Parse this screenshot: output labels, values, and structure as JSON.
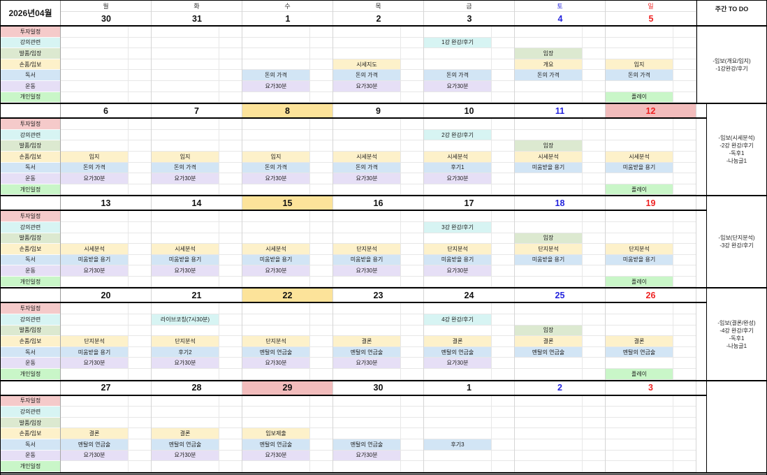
{
  "title": "2026년04월",
  "todo_header": "주간 TO DO",
  "weekdays": [
    {
      "label": "월",
      "color": "#303030"
    },
    {
      "label": "화",
      "color": "#303030"
    },
    {
      "label": "수",
      "color": "#303030"
    },
    {
      "label": "목",
      "color": "#303030"
    },
    {
      "label": "금",
      "color": "#303030"
    },
    {
      "label": "토",
      "color": "#2424dd"
    },
    {
      "label": "일",
      "color": "#ee2222"
    }
  ],
  "categories": [
    {
      "label": "투자일정",
      "color": "#f5caca"
    },
    {
      "label": "강의관련",
      "color": "#d7f4f3"
    },
    {
      "label": "발품/임장",
      "color": "#dce9d0"
    },
    {
      "label": "손품/임보",
      "color": "#fdf1ca"
    },
    {
      "label": "독서",
      "color": "#d2e5f5"
    },
    {
      "label": "운동",
      "color": "#e6dff6"
    },
    {
      "label": "개인일정",
      "color": "#c9f6c8"
    }
  ],
  "date_colors": {
    "default": "#111111",
    "sat": "#2424dd",
    "sun": "#ee2222"
  },
  "date_backgrounds": {
    "yellow": "#fce39a",
    "pink": "#f2bcbc"
  },
  "weeks": [
    {
      "dates": [
        {
          "day": "30",
          "color": "default",
          "bg": null
        },
        {
          "day": "31",
          "color": "default",
          "bg": null
        },
        {
          "day": "1",
          "color": "default",
          "bg": null
        },
        {
          "day": "2",
          "color": "default",
          "bg": null
        },
        {
          "day": "3",
          "color": "default",
          "bg": null
        },
        {
          "day": "4",
          "color": "sat",
          "bg": null
        },
        {
          "day": "5",
          "color": "sun",
          "bg": null
        }
      ],
      "rows": [
        [
          "",
          "",
          "",
          "",
          "",
          "",
          ""
        ],
        [
          "",
          "",
          "",
          "",
          "1강 완강/후기",
          "",
          ""
        ],
        [
          "",
          "",
          "",
          "",
          "",
          "임장",
          ""
        ],
        [
          "",
          "",
          "",
          "시세지도",
          "",
          "개요",
          "입지"
        ],
        [
          "",
          "",
          "돈의 가격",
          "돈의 가격",
          "돈의 가격",
          "돈의 가격",
          "돈의 가격"
        ],
        [
          "",
          "",
          "요가30분",
          "요가30분",
          "요가30분",
          "",
          ""
        ],
        [
          "",
          "",
          "",
          "",
          "",
          "",
          "플레이"
        ]
      ],
      "todo": [
        "-임보(개요/입지)",
        "-1강완강/후기"
      ]
    },
    {
      "dates": [
        {
          "day": "6",
          "color": "default",
          "bg": null
        },
        {
          "day": "7",
          "color": "default",
          "bg": null
        },
        {
          "day": "8",
          "color": "default",
          "bg": "yellow"
        },
        {
          "day": "9",
          "color": "default",
          "bg": null
        },
        {
          "day": "10",
          "color": "default",
          "bg": null
        },
        {
          "day": "11",
          "color": "sat",
          "bg": null
        },
        {
          "day": "12",
          "color": "sun",
          "bg": "pink"
        }
      ],
      "rows": [
        [
          "",
          "",
          "",
          "",
          "",
          "",
          ""
        ],
        [
          "",
          "",
          "",
          "",
          "2강 완강/후기",
          "",
          ""
        ],
        [
          "",
          "",
          "",
          "",
          "",
          "임장",
          ""
        ],
        [
          "입지",
          "입지",
          "입지",
          "시세분석",
          "시세분석",
          "시세분석",
          "시세분석"
        ],
        [
          "돈의 가격",
          "돈의 가격",
          "돈의 가격",
          "돈의 가격",
          "후기1",
          "미움받을 용기",
          "미움받을 용기"
        ],
        [
          "요가30분",
          "요가30분",
          "요가30분",
          "요가30분",
          "요가30분",
          "",
          ""
        ],
        [
          "",
          "",
          "",
          "",
          "",
          "",
          "플레이"
        ]
      ],
      "todo": [
        "-임보(시세분석)",
        "-2강 완강/후기",
        "-독후1",
        "-나눔글1"
      ]
    },
    {
      "dates": [
        {
          "day": "13",
          "color": "default",
          "bg": null
        },
        {
          "day": "14",
          "color": "default",
          "bg": null
        },
        {
          "day": "15",
          "color": "default",
          "bg": "yellow"
        },
        {
          "day": "16",
          "color": "default",
          "bg": null
        },
        {
          "day": "17",
          "color": "default",
          "bg": null
        },
        {
          "day": "18",
          "color": "sat",
          "bg": null
        },
        {
          "day": "19",
          "color": "sun",
          "bg": null
        }
      ],
      "rows": [
        [
          "",
          "",
          "",
          "",
          "",
          "",
          ""
        ],
        [
          "",
          "",
          "",
          "",
          "3강 완강/후기",
          "",
          ""
        ],
        [
          "",
          "",
          "",
          "",
          "",
          "임장",
          ""
        ],
        [
          "시세분석",
          "시세분석",
          "시세분석",
          "단지분석",
          "단지분석",
          "단지분석",
          "단지분석"
        ],
        [
          "미움받을 용기",
          "미움받을 용기",
          "미움받을 용기",
          "미움받을 용기",
          "미움받을 용기",
          "미움받을 용기",
          "미움받을 용기"
        ],
        [
          "요가30분",
          "요가30분",
          "요가30분",
          "요가30분",
          "요가30분",
          "",
          ""
        ],
        [
          "",
          "",
          "",
          "",
          "",
          "",
          "플레이"
        ]
      ],
      "todo": [
        "-임보(단지분석)",
        "-3강 완강/후기"
      ]
    },
    {
      "dates": [
        {
          "day": "20",
          "color": "default",
          "bg": null
        },
        {
          "day": "21",
          "color": "default",
          "bg": null
        },
        {
          "day": "22",
          "color": "default",
          "bg": "yellow"
        },
        {
          "day": "23",
          "color": "default",
          "bg": null
        },
        {
          "day": "24",
          "color": "default",
          "bg": null
        },
        {
          "day": "25",
          "color": "sat",
          "bg": null
        },
        {
          "day": "26",
          "color": "sun",
          "bg": null
        }
      ],
      "rows": [
        [
          "",
          "",
          "",
          "",
          "",
          "",
          ""
        ],
        [
          "",
          "라이브코칭(7시30분)",
          "",
          "",
          "4강 완강/후기",
          "",
          ""
        ],
        [
          "",
          "",
          "",
          "",
          "",
          "임장",
          ""
        ],
        [
          "단지분석",
          "단지분석",
          "단지분석",
          "결론",
          "결론",
          "결론",
          "결론"
        ],
        [
          "미움받을 용기",
          "후기2",
          "멘탈의 연금술",
          "멘탈의 연금술",
          "멘탈의 연금술",
          "멘탈의 연금술",
          "멘탈의 연금술"
        ],
        [
          "요가30분",
          "요가30분",
          "요가30분",
          "요가30분",
          "요가30분",
          "",
          ""
        ],
        [
          "",
          "",
          "",
          "",
          "",
          "",
          "플레이"
        ]
      ],
      "todo": [
        "-임보(결론/완성)",
        "-4강 완강/후기",
        "-독후1",
        "-나눔글1"
      ]
    },
    {
      "dates": [
        {
          "day": "27",
          "color": "default",
          "bg": null
        },
        {
          "day": "28",
          "color": "default",
          "bg": null
        },
        {
          "day": "29",
          "color": "default",
          "bg": "pink"
        },
        {
          "day": "30",
          "color": "default",
          "bg": null
        },
        {
          "day": "1",
          "color": "default",
          "bg": null
        },
        {
          "day": "2",
          "color": "sat",
          "bg": null
        },
        {
          "day": "3",
          "color": "sun",
          "bg": null
        }
      ],
      "rows": [
        [
          "",
          "",
          "",
          "",
          "",
          "",
          ""
        ],
        [
          "",
          "",
          "",
          "",
          "",
          "",
          ""
        ],
        [
          "",
          "",
          "",
          "",
          "",
          "",
          ""
        ],
        [
          "결론",
          "결론",
          "임보제출",
          "",
          "",
          "",
          ""
        ],
        [
          "멘탈의 연금술",
          "멘탈의 연금술",
          "멘탈의 연금술",
          "멘탈의 연금술",
          "후기3",
          "",
          ""
        ],
        [
          "요가30분",
          "요가30분",
          "요가30분",
          "요가30분",
          "",
          "",
          ""
        ],
        [
          "",
          "",
          "",
          "",
          "",
          "",
          ""
        ]
      ],
      "todo": []
    }
  ]
}
